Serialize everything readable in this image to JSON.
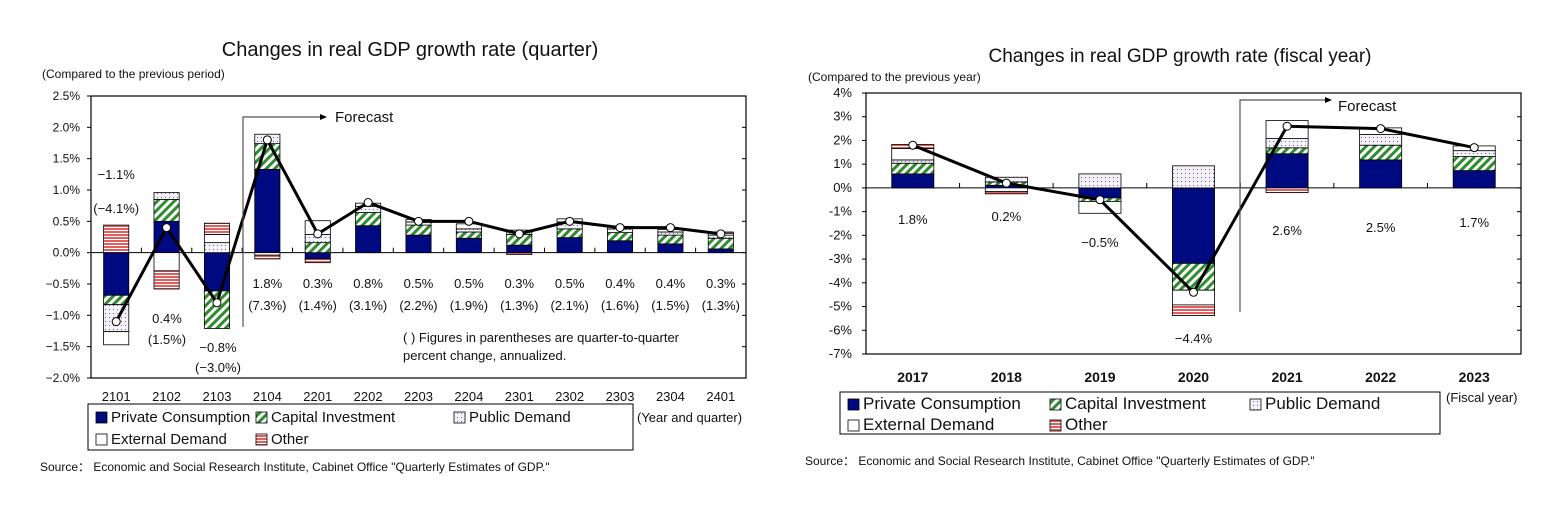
{
  "colors": {
    "private_consumption": "#000a80",
    "capital_investment": "#2e8b2e",
    "public_demand": "#8a7fa0",
    "external_demand": "#ffffff",
    "other": "#e06060",
    "line": "#000000"
  },
  "chart_data": [
    {
      "type": "bar",
      "stacked": true,
      "title": "Changes in real GDP growth rate (quarter)",
      "ylabel": "(Compared to the previous period)",
      "xlabel": "(Year and quarter)",
      "ylim": [
        -2.0,
        2.5
      ],
      "ytick_labels": [
        "2.5%",
        "2.0%",
        "1.5%",
        "1.0%",
        "0.5%",
        "0.0%",
        "−0.5%",
        "−1.0%",
        "−1.5%",
        "−2.0%"
      ],
      "yticks": [
        2.5,
        2.0,
        1.5,
        1.0,
        0.5,
        0.0,
        -0.5,
        -1.0,
        -1.5,
        -2.0
      ],
      "categories": [
        "2101",
        "2102",
        "2103",
        "2104",
        "2201",
        "2202",
        "2203",
        "2204",
        "2301",
        "2302",
        "2303",
        "2304",
        "2401"
      ],
      "forecast_label": "Forecast",
      "forecast_from": "2104",
      "note": [
        "(  ) Figures in parentheses are quarter-to-quarter",
        "percent change, annualized."
      ],
      "series": [
        {
          "name": "Private Consumption",
          "key": "private_consumption",
          "values": [
            -0.68,
            0.5,
            -0.61,
            1.33,
            -0.1,
            0.43,
            0.28,
            0.23,
            0.12,
            0.24,
            0.19,
            0.14,
            0.06
          ]
        },
        {
          "name": "Capital Investment",
          "key": "capital_investment",
          "values": [
            -0.15,
            0.35,
            -0.6,
            0.41,
            0.16,
            0.21,
            0.16,
            0.1,
            0.17,
            0.14,
            0.13,
            0.14,
            0.17
          ]
        },
        {
          "name": "Public Demand",
          "key": "public_demand",
          "values": [
            -0.43,
            0.11,
            0.16,
            0.15,
            0.13,
            0.1,
            0.05,
            0.05,
            0.04,
            0.11,
            0.06,
            0.05,
            0.05
          ]
        },
        {
          "name": "External Demand",
          "key": "external_demand",
          "values": [
            -0.21,
            -0.29,
            0.13,
            -0.04,
            0.22,
            0.05,
            0.04,
            0.08,
            0.03,
            0.05,
            0.04,
            0.04,
            0.03
          ]
        },
        {
          "name": "Other",
          "key": "other",
          "values": [
            0.44,
            -0.29,
            0.18,
            -0.06,
            -0.06,
            0.0,
            0.0,
            0.0,
            -0.03,
            0.0,
            0.0,
            0.0,
            0.02
          ]
        }
      ],
      "line": {
        "values": [
          -1.1,
          0.4,
          -0.8,
          1.8,
          0.3,
          0.8,
          0.5,
          0.5,
          0.3,
          0.5,
          0.4,
          0.4,
          0.3
        ]
      },
      "data_labels": [
        "−1.1%",
        "0.4%",
        "−0.8%",
        "1.8%",
        "0.3%",
        "0.8%",
        "0.5%",
        "0.5%",
        "0.3%",
        "0.5%",
        "0.4%",
        "0.4%",
        "0.3%"
      ],
      "annualized_labels": [
        "(−4.1%)",
        "(1.5%)",
        "(−3.0%)",
        "(7.3%)",
        "(1.4%)",
        "(3.1%)",
        "(2.2%)",
        "(1.9%)",
        "(1.3%)",
        "(2.1%)",
        "(1.6%)",
        "(1.5%)",
        "(1.3%)"
      ],
      "legend": "bottom",
      "grid": false
    },
    {
      "type": "bar",
      "stacked": true,
      "title": "Changes in real GDP growth rate (fiscal year)",
      "ylabel": "(Compared to the previous year)",
      "xlabel": "(Fiscal year)",
      "ylim": [
        -7,
        4
      ],
      "ytick_labels": [
        "4%",
        "3%",
        "2%",
        "1%",
        "0%",
        "-1%",
        "-2%",
        "-3%",
        "-4%",
        "-5%",
        "-6%",
        "-7%"
      ],
      "yticks": [
        4,
        3,
        2,
        1,
        0,
        -1,
        -2,
        -3,
        -4,
        -5,
        -6,
        -7
      ],
      "categories": [
        "2017",
        "2018",
        "2019",
        "2020",
        "2021",
        "2022",
        "2023"
      ],
      "forecast_label": "Forecast",
      "forecast_from": "2021",
      "series": [
        {
          "name": "Private Consumption",
          "key": "private_consumption",
          "values": [
            0.59,
            0.11,
            -0.42,
            -3.18,
            1.44,
            1.18,
            0.73
          ]
        },
        {
          "name": "Capital Investment",
          "key": "capital_investment",
          "values": [
            0.45,
            0.14,
            -0.15,
            -1.13,
            0.25,
            0.62,
            0.59
          ]
        },
        {
          "name": "Public Demand",
          "key": "public_demand",
          "values": [
            0.14,
            0.2,
            0.59,
            0.93,
            0.39,
            0.45,
            0.25
          ]
        },
        {
          "name": "External Demand",
          "key": "external_demand",
          "values": [
            0.48,
            -0.15,
            -0.5,
            -0.62,
            0.76,
            0.28,
            0.2
          ]
        },
        {
          "name": "Other",
          "key": "other",
          "values": [
            0.17,
            -0.1,
            0.0,
            -0.45,
            -0.2,
            0.0,
            0.0
          ]
        }
      ],
      "line": {
        "values": [
          1.8,
          0.2,
          -0.5,
          -4.4,
          2.6,
          2.5,
          1.7
        ]
      },
      "data_labels": [
        "1.8%",
        "0.2%",
        "−0.5%",
        "−4.4%",
        "2.6%",
        "2.5%",
        "1.7%"
      ],
      "legend": "bottom",
      "grid": false
    }
  ],
  "source": [
    "Source： Economic and Social Research Institute, Cabinet Office \"Quarterly Estimates of GDP.\"",
    "Source： Economic and Social Research Institute, Cabinet Office \"Quarterly Estimates of GDP.\""
  ]
}
